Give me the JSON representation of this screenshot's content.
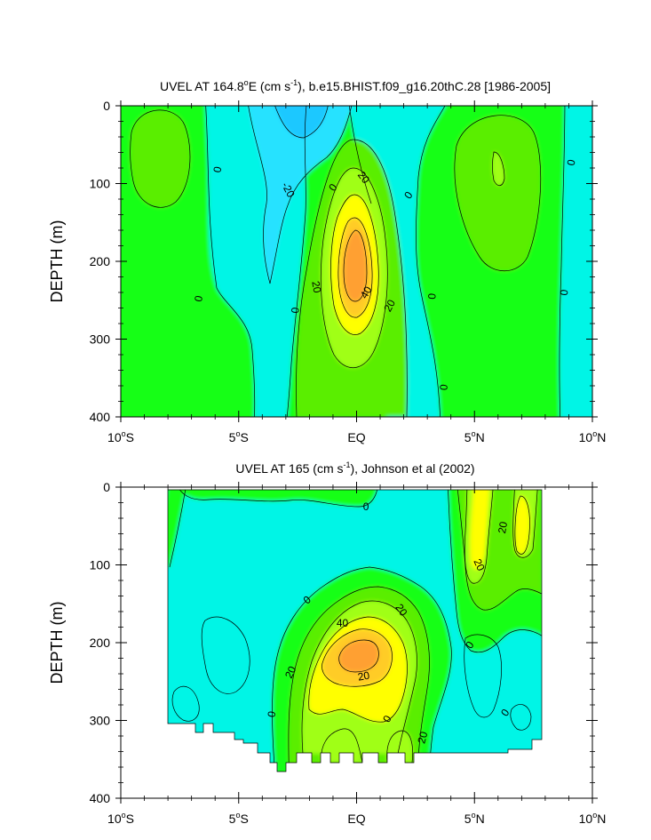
{
  "palette": {
    "neg_30": "#1ec8ff",
    "neg_20": "#28e2ff",
    "neg_10": "#00f5e6",
    "zero_10": "#14ff14",
    "pos_10": "#5aee00",
    "pos_20": "#a0ff14",
    "pos_30": "#ffff00",
    "pos_40": "#ffcc28",
    "pos_50": "#ffa032",
    "axis": "#000000",
    "background": "#ffffff"
  },
  "chart_data": [
    {
      "type": "contour",
      "title": "UVEL AT 164.8°E (cm s⁻¹), b.e15.BHIST.f09_g16.20thC.28 [1986-2005]",
      "title_parts": {
        "before_deg": "UVEL AT 164.8",
        "deg": "o",
        "after_deg": "E (cm s",
        "sup": "-1",
        "after_sup": "), b.e15.BHIST.f09_g16.20thC.28 [1986-2005]"
      },
      "ylabel": "DEPTH (m)",
      "xlim": [
        -10,
        10
      ],
      "ylim": [
        0,
        400
      ],
      "y_inverted": true,
      "x_ticks": [
        {
          "value": -10,
          "num": "10",
          "hemi": "S"
        },
        {
          "value": -5,
          "num": "5",
          "hemi": "S"
        },
        {
          "value": 0,
          "num": "EQ",
          "hemi": ""
        },
        {
          "value": 5,
          "num": "5",
          "hemi": "N"
        },
        {
          "value": 10,
          "num": "10",
          "hemi": "N"
        }
      ],
      "y_ticks": [
        "0",
        "100",
        "200",
        "300",
        "400"
      ],
      "contour_interval": 10,
      "contour_labels": [
        {
          "text": "0",
          "lat": -5.9,
          "depth": 82,
          "angle": -80
        },
        {
          "text": "0",
          "lat": -6.7,
          "depth": 248,
          "angle": -80
        },
        {
          "text": "-20",
          "lat": -2.9,
          "depth": 108,
          "angle": 62
        },
        {
          "text": "0",
          "lat": -1.0,
          "depth": 105,
          "angle": -55
        },
        {
          "text": "20",
          "lat": 0.3,
          "depth": 92,
          "angle": 52
        },
        {
          "text": "0",
          "lat": 2.2,
          "depth": 115,
          "angle": -55
        },
        {
          "text": "20",
          "lat": -1.7,
          "depth": 233,
          "angle": 80
        },
        {
          "text": "40",
          "lat": 0.4,
          "depth": 240,
          "angle": -60
        },
        {
          "text": "20",
          "lat": 1.4,
          "depth": 257,
          "angle": -62
        },
        {
          "text": "0",
          "lat": -2.6,
          "depth": 263,
          "angle": -85
        },
        {
          "text": "0",
          "lat": 3.2,
          "depth": 245,
          "angle": -85
        },
        {
          "text": "0",
          "lat": 3.7,
          "depth": 362,
          "angle": -85
        },
        {
          "text": "0",
          "lat": 8.8,
          "depth": 240,
          "angle": -85
        },
        {
          "text": "0",
          "lat": 9.1,
          "depth": 73,
          "angle": -80
        }
      ]
    },
    {
      "type": "contour",
      "title": "UVEL AT 165 (cm s⁻¹), Johnson et al (2002)",
      "title_parts": {
        "before_deg": "UVEL AT 165 (cm s",
        "deg": "",
        "after_deg": "",
        "sup": "-1",
        "after_sup": "), Johnson et al (2002)"
      },
      "ylabel": "DEPTH (m)",
      "xlim": [
        -10,
        10
      ],
      "ylim": [
        0,
        400
      ],
      "y_inverted": true,
      "x_ticks": [
        {
          "value": -10,
          "num": "10",
          "hemi": "S"
        },
        {
          "value": -5,
          "num": "5",
          "hemi": "S"
        },
        {
          "value": 0,
          "num": "EQ",
          "hemi": ""
        },
        {
          "value": 5,
          "num": "5",
          "hemi": "N"
        },
        {
          "value": 10,
          "num": "10",
          "hemi": "N"
        }
      ],
      "y_ticks": [
        "0",
        "100",
        "200",
        "300",
        "400"
      ],
      "contour_interval": 10,
      "data_extent": {
        "lat": [
          -8,
          8
        ],
        "depth_max": 345
      },
      "contour_labels": [
        {
          "text": "0",
          "lat": 0.4,
          "depth": 25,
          "angle": 0
        },
        {
          "text": "20",
          "lat": 6.2,
          "depth": 52,
          "angle": -80
        },
        {
          "text": "20",
          "lat": 5.2,
          "depth": 100,
          "angle": 65
        },
        {
          "text": "0",
          "lat": -2.1,
          "depth": 145,
          "angle": -40
        },
        {
          "text": "40",
          "lat": -0.6,
          "depth": 175,
          "angle": 0
        },
        {
          "text": "20",
          "lat": 1.9,
          "depth": 158,
          "angle": 55
        },
        {
          "text": "0",
          "lat": 4.8,
          "depth": 203,
          "angle": -55
        },
        {
          "text": "20",
          "lat": -2.8,
          "depth": 238,
          "angle": -65
        },
        {
          "text": "20",
          "lat": 0.3,
          "depth": 243,
          "angle": -10
        },
        {
          "text": "0",
          "lat": -3.6,
          "depth": 292,
          "angle": -80
        },
        {
          "text": "0",
          "lat": 1.3,
          "depth": 298,
          "angle": -60
        },
        {
          "text": "20",
          "lat": 2.8,
          "depth": 322,
          "angle": -75
        },
        {
          "text": "0",
          "lat": 6.3,
          "depth": 290,
          "angle": -55
        }
      ]
    }
  ]
}
